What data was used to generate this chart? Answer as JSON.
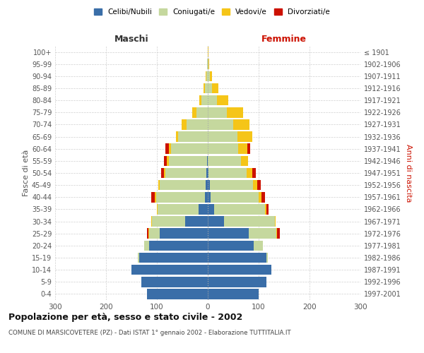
{
  "age_groups": [
    "0-4",
    "5-9",
    "10-14",
    "15-19",
    "20-24",
    "25-29",
    "30-34",
    "35-39",
    "40-44",
    "45-49",
    "50-54",
    "55-59",
    "60-64",
    "65-69",
    "70-74",
    "75-79",
    "80-84",
    "85-89",
    "90-94",
    "95-99",
    "100+"
  ],
  "birth_years": [
    "1997-2001",
    "1992-1996",
    "1987-1991",
    "1982-1986",
    "1977-1981",
    "1972-1976",
    "1967-1971",
    "1962-1966",
    "1957-1961",
    "1952-1956",
    "1947-1951",
    "1942-1946",
    "1937-1941",
    "1932-1936",
    "1927-1931",
    "1922-1926",
    "1917-1921",
    "1912-1916",
    "1907-1911",
    "1902-1906",
    "≤ 1901"
  ],
  "males": {
    "celibi": [
      120,
      130,
      150,
      135,
      115,
      95,
      45,
      18,
      6,
      4,
      3,
      2,
      0,
      0,
      0,
      0,
      0,
      0,
      0,
      0,
      0
    ],
    "coniugati": [
      0,
      0,
      0,
      3,
      10,
      20,
      65,
      80,
      95,
      90,
      80,
      75,
      72,
      58,
      42,
      22,
      12,
      6,
      3,
      1,
      0
    ],
    "vedovi": [
      0,
      0,
      0,
      0,
      0,
      1,
      1,
      2,
      3,
      3,
      3,
      4,
      4,
      4,
      10,
      8,
      5,
      3,
      1,
      0,
      0
    ],
    "divorziati": [
      0,
      0,
      0,
      0,
      0,
      4,
      0,
      0,
      7,
      0,
      5,
      5,
      8,
      0,
      0,
      0,
      0,
      0,
      0,
      0,
      0
    ]
  },
  "females": {
    "nubili": [
      100,
      115,
      125,
      115,
      90,
      80,
      32,
      12,
      5,
      4,
      2,
      0,
      0,
      0,
      0,
      0,
      0,
      0,
      0,
      0,
      0
    ],
    "coniugate": [
      0,
      0,
      0,
      3,
      18,
      55,
      100,
      100,
      95,
      85,
      75,
      65,
      60,
      58,
      50,
      38,
      18,
      8,
      4,
      1,
      0
    ],
    "vedove": [
      0,
      0,
      0,
      0,
      0,
      1,
      2,
      3,
      5,
      8,
      10,
      14,
      18,
      30,
      32,
      32,
      22,
      13,
      5,
      2,
      1
    ],
    "divorziate": [
      0,
      0,
      0,
      0,
      0,
      5,
      0,
      5,
      7,
      7,
      7,
      0,
      5,
      0,
      0,
      0,
      0,
      0,
      0,
      0,
      0
    ]
  },
  "colors": {
    "celibi_nubili": "#3a6ea8",
    "coniugati": "#c5d89e",
    "vedovi": "#f5c518",
    "divorziati": "#cc1100"
  },
  "xlim": 300,
  "title": "Popolazione per età, sesso e stato civile - 2002",
  "subtitle": "COMUNE DI MARSICOVETERE (PZ) - Dati ISTAT 1° gennaio 2002 - Elaborazione TUTTITALIA.IT",
  "xlabel_left": "Maschi",
  "xlabel_right": "Femmine",
  "ylabel_left": "Fasce di età",
  "ylabel_right": "Anni di nascita",
  "legend_labels": [
    "Celibi/Nubili",
    "Coniugati/e",
    "Vedovi/e",
    "Divorziati/e"
  ],
  "background_color": "#ffffff"
}
